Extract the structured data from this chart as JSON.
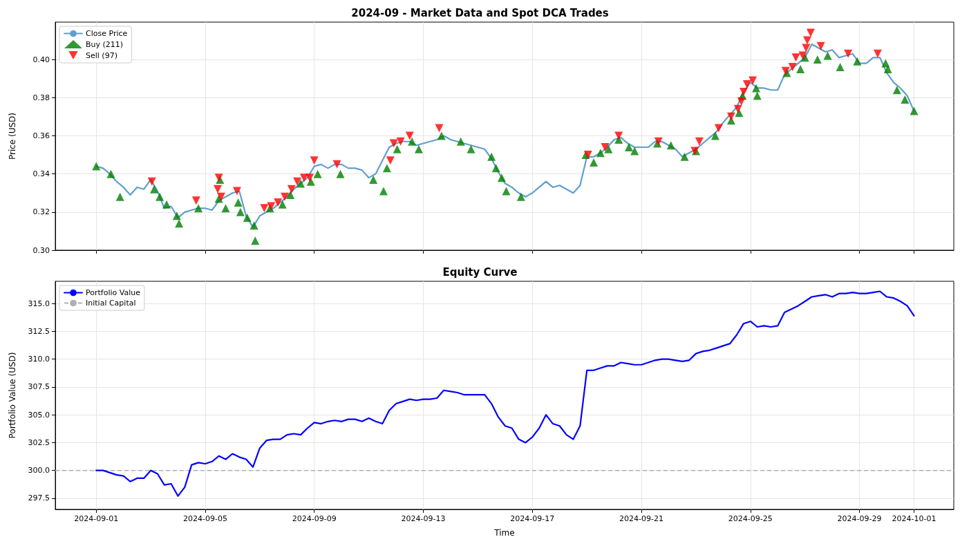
{
  "chart_data": [
    {
      "type": "line",
      "title": "2024-09 - Market Data and Spot DCA Trades",
      "ylabel": "Price (USD)",
      "x": [
        "2024-09-01T00:00",
        "2024-09-01T06:00",
        "2024-09-01T12:00",
        "2024-09-01T18:00",
        "2024-09-02T00:00",
        "2024-09-02T06:00",
        "2024-09-02T12:00",
        "2024-09-02T18:00",
        "2024-09-03T00:00",
        "2024-09-03T06:00",
        "2024-09-03T12:00",
        "2024-09-03T18:00",
        "2024-09-04T00:00",
        "2024-09-04T06:00",
        "2024-09-04T12:00",
        "2024-09-04T18:00",
        "2024-09-05T00:00",
        "2024-09-05T06:00",
        "2024-09-05T12:00",
        "2024-09-05T18:00",
        "2024-09-06T00:00",
        "2024-09-06T06:00",
        "2024-09-06T12:00",
        "2024-09-06T18:00",
        "2024-09-07T00:00",
        "2024-09-07T06:00",
        "2024-09-07T12:00",
        "2024-09-07T18:00",
        "2024-09-08T00:00",
        "2024-09-08T06:00",
        "2024-09-08T12:00",
        "2024-09-08T18:00",
        "2024-09-09T00:00",
        "2024-09-09T06:00",
        "2024-09-09T12:00",
        "2024-09-09T18:00",
        "2024-09-10T00:00",
        "2024-09-10T06:00",
        "2024-09-10T12:00",
        "2024-09-10T18:00",
        "2024-09-11T00:00",
        "2024-09-11T06:00",
        "2024-09-11T12:00",
        "2024-09-11T18:00",
        "2024-09-12T00:00",
        "2024-09-12T06:00",
        "2024-09-12T12:00",
        "2024-09-12T18:00",
        "2024-09-13T00:00",
        "2024-09-13T06:00",
        "2024-09-13T12:00",
        "2024-09-13T18:00",
        "2024-09-14T00:00",
        "2024-09-14T06:00",
        "2024-09-14T12:00",
        "2024-09-14T18:00",
        "2024-09-15T00:00",
        "2024-09-15T06:00",
        "2024-09-15T12:00",
        "2024-09-15T18:00",
        "2024-09-16T00:00",
        "2024-09-16T06:00",
        "2024-09-16T12:00",
        "2024-09-16T18:00",
        "2024-09-17T00:00",
        "2024-09-17T06:00",
        "2024-09-17T12:00",
        "2024-09-17T18:00",
        "2024-09-18T00:00",
        "2024-09-18T06:00",
        "2024-09-18T12:00",
        "2024-09-18T18:00",
        "2024-09-19T00:00",
        "2024-09-19T06:00",
        "2024-09-19T12:00",
        "2024-09-19T18:00",
        "2024-09-20T00:00",
        "2024-09-20T06:00",
        "2024-09-20T12:00",
        "2024-09-20T18:00",
        "2024-09-21T00:00",
        "2024-09-21T06:00",
        "2024-09-21T12:00",
        "2024-09-21T18:00",
        "2024-09-22T00:00",
        "2024-09-22T06:00",
        "2024-09-22T12:00",
        "2024-09-22T18:00",
        "2024-09-23T00:00",
        "2024-09-23T06:00",
        "2024-09-23T12:00",
        "2024-09-23T18:00",
        "2024-09-24T00:00",
        "2024-09-24T06:00",
        "2024-09-24T12:00",
        "2024-09-24T18:00",
        "2024-09-25T00:00",
        "2024-09-25T06:00",
        "2024-09-25T12:00",
        "2024-09-25T18:00",
        "2024-09-26T00:00",
        "2024-09-26T06:00",
        "2024-09-26T12:00",
        "2024-09-26T18:00",
        "2024-09-27T00:00",
        "2024-09-27T06:00",
        "2024-09-27T12:00",
        "2024-09-27T18:00",
        "2024-09-28T00:00",
        "2024-09-28T06:00",
        "2024-09-28T12:00",
        "2024-09-28T18:00",
        "2024-09-29T00:00",
        "2024-09-29T06:00",
        "2024-09-29T12:00",
        "2024-09-29T18:00",
        "2024-09-30T00:00",
        "2024-09-30T06:00",
        "2024-09-30T12:00",
        "2024-09-30T18:00",
        "2024-10-01T00:00"
      ],
      "series": [
        {
          "name": "Close Price",
          "color": "#5f9fcd",
          "marker": "none",
          "values": [
            0.344,
            0.343,
            0.34,
            0.336,
            0.333,
            0.329,
            0.333,
            0.332,
            0.337,
            0.331,
            0.322,
            0.323,
            0.317,
            0.32,
            0.321,
            0.322,
            0.322,
            0.321,
            0.326,
            0.328,
            0.33,
            0.331,
            0.318,
            0.312,
            0.318,
            0.32,
            0.322,
            0.325,
            0.328,
            0.332,
            0.335,
            0.338,
            0.344,
            0.345,
            0.343,
            0.345,
            0.345,
            0.343,
            0.343,
            0.342,
            0.338,
            0.34,
            0.347,
            0.354,
            0.356,
            0.357,
            0.357,
            0.355,
            0.356,
            0.357,
            0.358,
            0.36,
            0.358,
            0.357,
            0.356,
            0.355,
            0.354,
            0.353,
            0.348,
            0.341,
            0.335,
            0.333,
            0.33,
            0.328,
            0.33,
            0.333,
            0.336,
            0.333,
            0.334,
            0.332,
            0.33,
            0.334,
            0.349,
            0.349,
            0.351,
            0.354,
            0.358,
            0.359,
            0.356,
            0.354,
            0.354,
            0.354,
            0.357,
            0.357,
            0.355,
            0.353,
            0.349,
            0.351,
            0.353,
            0.356,
            0.359,
            0.362,
            0.367,
            0.371,
            0.375,
            0.383,
            0.388,
            0.385,
            0.385,
            0.384,
            0.384,
            0.392,
            0.395,
            0.398,
            0.401,
            0.408,
            0.406,
            0.404,
            0.405,
            0.401,
            0.402,
            0.403,
            0.398,
            0.398,
            0.401,
            0.401,
            0.393,
            0.388,
            0.385,
            0.381,
            0.373
          ]
        },
        {
          "name": "Buy (211)",
          "type": "scatter",
          "color": "#008000",
          "marker": "triangle",
          "x": [
            "2024-09-01T00:00",
            "2024-09-01T13:00",
            "2024-09-01T21:00",
            "2024-09-03T03:00",
            "2024-09-03T08:00",
            "2024-09-03T14:00",
            "2024-09-03T23:00",
            "2024-09-04T01:00",
            "2024-09-04T18:00",
            "2024-09-05T12:00",
            "2024-09-05T13:00",
            "2024-09-05T18:00",
            "2024-09-06T05:00",
            "2024-09-06T07:00",
            "2024-09-06T13:00",
            "2024-09-06T19:00",
            "2024-09-06T20:00",
            "2024-09-07T09:00",
            "2024-09-07T20:00",
            "2024-09-08T03:00",
            "2024-09-08T12:00",
            "2024-09-08T21:00",
            "2024-09-09T03:00",
            "2024-09-09T23:00",
            "2024-09-11T04:00",
            "2024-09-11T13:00",
            "2024-09-11T16:00",
            "2024-09-12T01:00",
            "2024-09-12T14:00",
            "2024-09-12T20:00",
            "2024-09-13T16:00",
            "2024-09-14T09:00",
            "2024-09-14T18:00",
            "2024-09-15T12:00",
            "2024-09-15T16:00",
            "2024-09-15T21:00",
            "2024-09-16T01:00",
            "2024-09-16T14:00",
            "2024-09-18T23:00",
            "2024-09-19T06:00",
            "2024-09-19T12:00",
            "2024-09-19T19:00",
            "2024-09-20T04:00",
            "2024-09-20T13:00",
            "2024-09-20T18:00",
            "2024-09-21T14:00",
            "2024-09-22T02:00",
            "2024-09-22T14:00",
            "2024-09-23T00:00",
            "2024-09-23T17:00",
            "2024-09-24T07:00",
            "2024-09-24T14:00",
            "2024-09-24T17:00",
            "2024-09-25T05:00",
            "2024-09-25T06:00",
            "2024-09-26T08:00",
            "2024-09-26T20:00",
            "2024-09-27T00:00",
            "2024-09-27T11:00",
            "2024-09-27T20:00",
            "2024-09-28T07:00",
            "2024-09-28T22:00",
            "2024-09-29T23:00",
            "2024-09-30T01:00",
            "2024-09-30T09:00",
            "2024-09-30T16:00",
            "2024-10-01T00:00"
          ],
          "values": [
            0.344,
            0.34,
            0.328,
            0.332,
            0.328,
            0.324,
            0.318,
            0.314,
            0.322,
            0.327,
            0.337,
            0.322,
            0.325,
            0.32,
            0.317,
            0.313,
            0.305,
            0.322,
            0.324,
            0.329,
            0.335,
            0.336,
            0.34,
            0.34,
            0.337,
            0.331,
            0.343,
            0.353,
            0.357,
            0.353,
            0.36,
            0.357,
            0.353,
            0.349,
            0.343,
            0.338,
            0.331,
            0.328,
            0.35,
            0.346,
            0.351,
            0.353,
            0.358,
            0.354,
            0.352,
            0.356,
            0.355,
            0.349,
            0.352,
            0.36,
            0.368,
            0.372,
            0.381,
            0.385,
            0.381,
            0.393,
            0.395,
            0.401,
            0.4,
            0.402,
            0.396,
            0.399,
            0.398,
            0.395,
            0.384,
            0.379,
            0.373
          ]
        },
        {
          "name": "Sell (97)",
          "type": "scatter",
          "color": "#ff0000",
          "marker": "triangle-down",
          "x": [
            "2024-09-03T01:00",
            "2024-09-04T16:00",
            "2024-09-05T11:00",
            "2024-09-05T12:00",
            "2024-09-05T14:00",
            "2024-09-06T04:00",
            "2024-09-07T04:00",
            "2024-09-07T10:00",
            "2024-09-07T16:00",
            "2024-09-07T22:00",
            "2024-09-08T04:00",
            "2024-09-08T09:00",
            "2024-09-08T15:00",
            "2024-09-08T20:00",
            "2024-09-09T00:00",
            "2024-09-09T20:00",
            "2024-09-11T19:00",
            "2024-09-11T22:00",
            "2024-09-12T04:00",
            "2024-09-12T12:00",
            "2024-09-13T14:00",
            "2024-09-19T01:00",
            "2024-09-19T16:00",
            "2024-09-20T04:00",
            "2024-09-21T15:00",
            "2024-09-22T23:00",
            "2024-09-23T03:00",
            "2024-09-23T20:00",
            "2024-09-24T07:00",
            "2024-09-24T13:00",
            "2024-09-24T16:00",
            "2024-09-24T18:00",
            "2024-09-24T21:00",
            "2024-09-25T02:00",
            "2024-09-26T07:00",
            "2024-09-26T13:00",
            "2024-09-26T16:00",
            "2024-09-26T22:00",
            "2024-09-27T01:00",
            "2024-09-27T02:00",
            "2024-09-27T05:00",
            "2024-09-27T14:00",
            "2024-09-28T14:00",
            "2024-09-29T16:00"
          ],
          "values": [
            0.336,
            0.326,
            0.332,
            0.338,
            0.328,
            0.331,
            0.322,
            0.323,
            0.325,
            0.328,
            0.332,
            0.336,
            0.338,
            0.338,
            0.347,
            0.345,
            0.347,
            0.356,
            0.357,
            0.36,
            0.364,
            0.35,
            0.354,
            0.36,
            0.357,
            0.352,
            0.357,
            0.364,
            0.37,
            0.374,
            0.378,
            0.383,
            0.387,
            0.389,
            0.394,
            0.396,
            0.401,
            0.402,
            0.406,
            0.41,
            0.414,
            0.407,
            0.403,
            0.403
          ]
        }
      ],
      "xlim": [
        "2024-08-30T12:00",
        "2024-10-02T11:00"
      ],
      "xticks": [
        "2024-09-01",
        "2024-09-05",
        "2024-09-09",
        "2024-09-13",
        "2024-09-17",
        "2024-09-21",
        "2024-09-25",
        "2024-09-29",
        "2024-10-01"
      ],
      "ylim": [
        0.3,
        0.4196
      ],
      "yticks": [
        {
          "value": 0.3,
          "label": "0.30"
        },
        {
          "value": 0.32,
          "label": "0.32"
        },
        {
          "value": 0.34,
          "label": "0.34"
        },
        {
          "value": 0.36,
          "label": "0.36"
        },
        {
          "value": 0.38,
          "label": "0.38"
        },
        {
          "value": 0.4,
          "label": "0.40"
        }
      ],
      "tick_labels": "y",
      "grid": true,
      "legend": "top left"
    },
    {
      "type": "line",
      "title": "Equity Curve",
      "xlabel": "Time",
      "ylabel": "Portfolio Value (USD)",
      "x": [
        "2024-09-01T00:00",
        "2024-09-01T06:00",
        "2024-09-01T12:00",
        "2024-09-01T18:00",
        "2024-09-02T00:00",
        "2024-09-02T06:00",
        "2024-09-02T12:00",
        "2024-09-02T18:00",
        "2024-09-03T00:00",
        "2024-09-03T06:00",
        "2024-09-03T12:00",
        "2024-09-03T18:00",
        "2024-09-04T00:00",
        "2024-09-04T06:00",
        "2024-09-04T12:00",
        "2024-09-04T18:00",
        "2024-09-05T00:00",
        "2024-09-05T06:00",
        "2024-09-05T12:00",
        "2024-09-05T18:00",
        "2024-09-06T00:00",
        "2024-09-06T06:00",
        "2024-09-06T12:00",
        "2024-09-06T18:00",
        "2024-09-07T00:00",
        "2024-09-07T06:00",
        "2024-09-07T12:00",
        "2024-09-07T18:00",
        "2024-09-08T00:00",
        "2024-09-08T06:00",
        "2024-09-08T12:00",
        "2024-09-08T18:00",
        "2024-09-09T00:00",
        "2024-09-09T06:00",
        "2024-09-09T12:00",
        "2024-09-09T18:00",
        "2024-09-10T00:00",
        "2024-09-10T06:00",
        "2024-09-10T12:00",
        "2024-09-10T18:00",
        "2024-09-11T00:00",
        "2024-09-11T06:00",
        "2024-09-11T12:00",
        "2024-09-11T18:00",
        "2024-09-12T00:00",
        "2024-09-12T06:00",
        "2024-09-12T12:00",
        "2024-09-12T18:00",
        "2024-09-13T00:00",
        "2024-09-13T06:00",
        "2024-09-13T12:00",
        "2024-09-13T18:00",
        "2024-09-14T00:00",
        "2024-09-14T06:00",
        "2024-09-14T12:00",
        "2024-09-14T18:00",
        "2024-09-15T00:00",
        "2024-09-15T06:00",
        "2024-09-15T12:00",
        "2024-09-15T18:00",
        "2024-09-16T00:00",
        "2024-09-16T06:00",
        "2024-09-16T12:00",
        "2024-09-16T18:00",
        "2024-09-17T00:00",
        "2024-09-17T06:00",
        "2024-09-17T12:00",
        "2024-09-17T18:00",
        "2024-09-18T00:00",
        "2024-09-18T06:00",
        "2024-09-18T12:00",
        "2024-09-18T18:00",
        "2024-09-19T00:00",
        "2024-09-19T06:00",
        "2024-09-19T12:00",
        "2024-09-19T18:00",
        "2024-09-20T00:00",
        "2024-09-20T06:00",
        "2024-09-20T12:00",
        "2024-09-20T18:00",
        "2024-09-21T00:00",
        "2024-09-21T06:00",
        "2024-09-21T12:00",
        "2024-09-21T18:00",
        "2024-09-22T00:00",
        "2024-09-22T06:00",
        "2024-09-22T12:00",
        "2024-09-22T18:00",
        "2024-09-23T00:00",
        "2024-09-23T06:00",
        "2024-09-23T12:00",
        "2024-09-23T18:00",
        "2024-09-24T00:00",
        "2024-09-24T06:00",
        "2024-09-24T12:00",
        "2024-09-24T18:00",
        "2024-09-25T00:00",
        "2024-09-25T06:00",
        "2024-09-25T12:00",
        "2024-09-25T18:00",
        "2024-09-26T00:00",
        "2024-09-26T06:00",
        "2024-09-26T12:00",
        "2024-09-26T18:00",
        "2024-09-27T00:00",
        "2024-09-27T06:00",
        "2024-09-27T12:00",
        "2024-09-27T18:00",
        "2024-09-28T00:00",
        "2024-09-28T06:00",
        "2024-09-28T12:00",
        "2024-09-28T18:00",
        "2024-09-29T00:00",
        "2024-09-29T06:00",
        "2024-09-29T12:00",
        "2024-09-29T18:00",
        "2024-09-30T00:00",
        "2024-09-30T06:00",
        "2024-09-30T12:00",
        "2024-09-30T18:00",
        "2024-10-01T00:00"
      ],
      "series": [
        {
          "name": "Portfolio Value",
          "color": "#0000ff",
          "marker": "none",
          "values": [
            300.0,
            300.0,
            299.8,
            299.6,
            299.5,
            299.0,
            299.3,
            299.3,
            300.0,
            299.7,
            298.7,
            298.8,
            297.7,
            298.5,
            300.5,
            300.7,
            300.6,
            300.8,
            301.3,
            301.0,
            301.5,
            301.2,
            301.0,
            300.3,
            302.0,
            302.7,
            302.8,
            302.8,
            303.2,
            303.3,
            303.2,
            303.8,
            304.3,
            304.2,
            304.4,
            304.5,
            304.4,
            304.6,
            304.6,
            304.4,
            304.7,
            304.4,
            304.2,
            305.4,
            306.0,
            306.2,
            306.4,
            306.3,
            306.4,
            306.4,
            306.5,
            307.2,
            307.1,
            307.0,
            306.8,
            306.8,
            306.8,
            306.8,
            306.0,
            304.8,
            304.0,
            303.8,
            302.8,
            302.5,
            303.0,
            303.8,
            305.0,
            304.2,
            304.0,
            303.2,
            302.8,
            304.0,
            309.0,
            309.0,
            309.2,
            309.4,
            309.4,
            309.7,
            309.6,
            309.5,
            309.5,
            309.7,
            309.9,
            310.0,
            310.0,
            309.9,
            309.8,
            309.9,
            310.5,
            310.7,
            310.8,
            311.0,
            311.2,
            311.4,
            312.2,
            313.2,
            313.4,
            312.9,
            313.0,
            312.9,
            313.0,
            314.2,
            314.5,
            314.8,
            315.2,
            315.6,
            315.7,
            315.8,
            315.6,
            315.9,
            315.9,
            316.0,
            315.9,
            315.9,
            316.0,
            316.1,
            315.6,
            315.5,
            315.2,
            314.8,
            313.9
          ]
        }
      ],
      "ref_lines": [
        {
          "axis": "y",
          "value": 300,
          "label": "Initial Capital",
          "color": "#b0b0b0",
          "line_style": "dashed"
        }
      ],
      "xlim": [
        "2024-08-30T12:00",
        "2024-10-02T11:00"
      ],
      "xticks": [
        "2024-09-01",
        "2024-09-05",
        "2024-09-09",
        "2024-09-13",
        "2024-09-17",
        "2024-09-21",
        "2024-09-25",
        "2024-09-29",
        "2024-10-01"
      ],
      "ylim": [
        296.5,
        317.0
      ],
      "yticks": [
        {
          "value": 297.5,
          "label": "297.5"
        },
        {
          "value": 300,
          "label": "300.0"
        },
        {
          "value": 302.5,
          "label": "302.5"
        },
        {
          "value": 305,
          "label": "305.0"
        },
        {
          "value": 307.5,
          "label": "307.5"
        },
        {
          "value": 310,
          "label": "310.0"
        },
        {
          "value": 312.5,
          "label": "312.5"
        },
        {
          "value": 315,
          "label": "315.0"
        }
      ],
      "grid": true,
      "legend": "top left"
    }
  ]
}
